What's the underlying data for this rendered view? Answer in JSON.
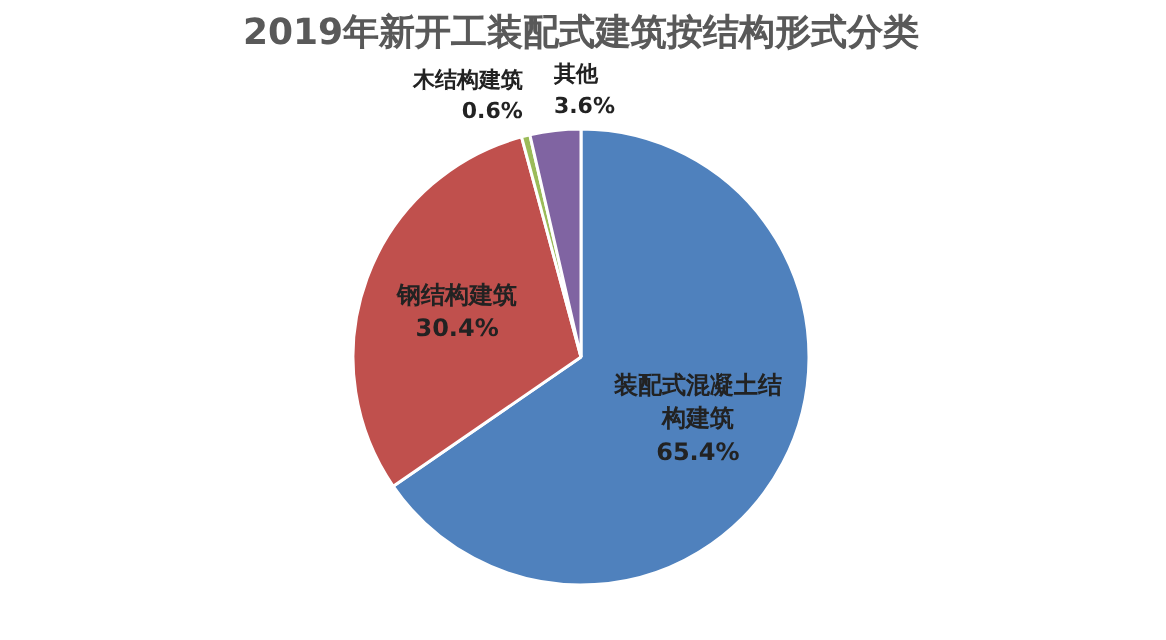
{
  "chart_data": {
    "type": "pie",
    "title": "2019年新开工装配式建筑按结构形式分类",
    "categories": [
      "装配式混凝土结构建筑",
      "钢结构建筑",
      "木结构建筑",
      "其他"
    ],
    "values": [
      65.4,
      30.4,
      0.6,
      3.6
    ],
    "colors": [
      "#4f81bd",
      "#c0504d",
      "#9bbb59",
      "#8064a2"
    ],
    "value_labels": [
      "65.4%",
      "30.4%",
      "0.6%",
      "3.6%"
    ]
  }
}
